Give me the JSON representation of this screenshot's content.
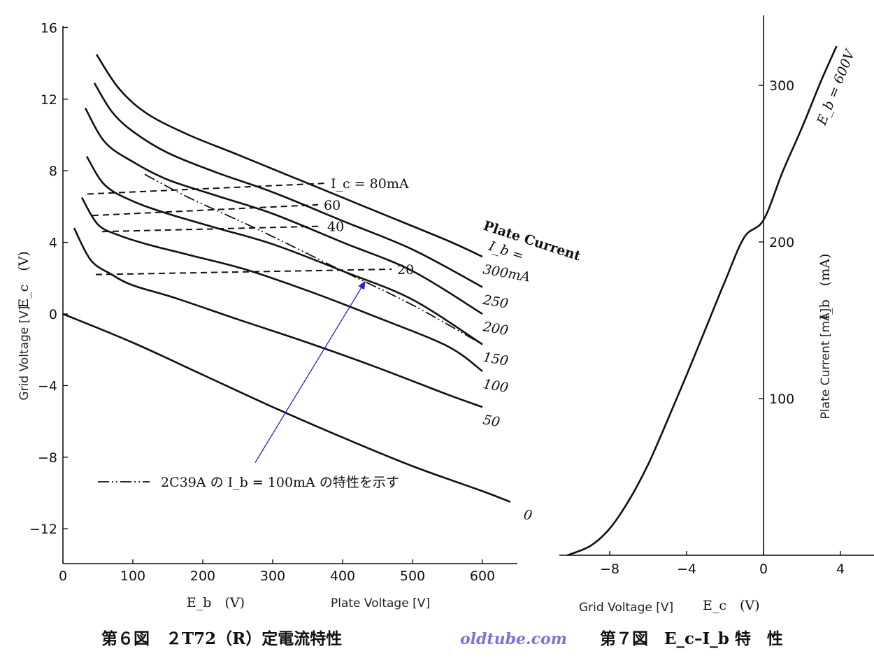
{
  "chart_data": [
    {
      "type": "line",
      "title": "第６図　２T72（R）定電流特性",
      "xlabel": "E_b　(V)",
      "xlabel_en": "Plate Voltage [V]",
      "ylabel": "E_c　(V)",
      "ylabel_en": "Grid Voltage [V]",
      "xlim": [
        0,
        650
      ],
      "ylim": [
        -14,
        16.5
      ],
      "x_ticks": [
        "0",
        "100",
        "200",
        "300",
        "400",
        "500",
        "600"
      ],
      "y_ticks": [
        "16",
        "12",
        "8",
        "4",
        "0",
        "−4",
        "−8",
        "−12"
      ],
      "family_label": "Plate Current",
      "family_symbol": "I_b =",
      "series": [
        {
          "name": "300mA",
          "label": "300mA",
          "color": "#111111",
          "x": [
            48,
            80,
            120,
            180,
            250,
            350,
            450,
            550,
            600
          ],
          "y": [
            14.5,
            12.6,
            11.2,
            10.0,
            8.9,
            7.3,
            5.7,
            4.1,
            3.2
          ]
        },
        {
          "name": "250",
          "label": "250",
          "color": "#111111",
          "x": [
            45,
            70,
            100,
            150,
            220,
            300,
            400,
            500,
            600
          ],
          "y": [
            12.9,
            11.3,
            10.2,
            9.0,
            7.9,
            6.8,
            5.2,
            3.6,
            1.5
          ]
        },
        {
          "name": "200",
          "label": "200",
          "color": "#111111",
          "x": [
            32,
            60,
            100,
            150,
            220,
            300,
            400,
            500,
            600
          ],
          "y": [
            11.5,
            9.6,
            8.5,
            7.5,
            6.6,
            5.6,
            4.0,
            2.4,
            0.0
          ]
        },
        {
          "name": "150",
          "label": "150",
          "color": "#111111",
          "x": [
            34,
            60,
            100,
            150,
            220,
            300,
            400,
            500,
            600
          ],
          "y": [
            8.8,
            7.2,
            6.3,
            5.6,
            4.8,
            3.9,
            2.4,
            0.8,
            -1.7
          ]
        },
        {
          "name": "100",
          "label": "100",
          "color": "#111111",
          "x": [
            27,
            50,
            80,
            120,
            180,
            260,
            350,
            450,
            550,
            600
          ],
          "y": [
            6.5,
            5.0,
            4.4,
            3.9,
            3.3,
            2.5,
            1.3,
            -0.2,
            -1.8,
            -3.2
          ]
        },
        {
          "name": "50",
          "label": "50",
          "color": "#111111",
          "x": [
            16,
            40,
            70,
            100,
            160,
            250,
            350,
            450,
            550,
            600
          ],
          "y": [
            4.8,
            3.0,
            2.2,
            1.6,
            0.9,
            -0.3,
            -1.6,
            -3.0,
            -4.5,
            -5.2
          ]
        },
        {
          "name": "0",
          "label": "0",
          "color": "#111111",
          "x": [
            0,
            100,
            200,
            300,
            400,
            500,
            600,
            640
          ],
          "y": [
            0.0,
            -1.6,
            -3.4,
            -5.2,
            -6.9,
            -8.5,
            -9.9,
            -10.5
          ]
        }
      ],
      "constant_grid_current": [
        {
          "label": "I_c = 80mA",
          "color": "#111111",
          "x": [
            35,
            375
          ],
          "y": [
            6.7,
            7.3
          ]
        },
        {
          "label": "60",
          "color": "#111111",
          "x": [
            42,
            365
          ],
          "y": [
            5.5,
            6.1
          ]
        },
        {
          "label": "40",
          "color": "#111111",
          "x": [
            56,
            370
          ],
          "y": [
            4.6,
            4.9
          ]
        },
        {
          "label": "20",
          "color": "#111111",
          "x": [
            47,
            470
          ],
          "y": [
            2.2,
            2.5
          ]
        }
      ],
      "reference_curve": {
        "label": "2C39A の I_b = 100mA の特性を示す",
        "color": "#111111",
        "x": [
          117,
          180,
          280,
          400,
          500,
          600
        ],
        "y": [
          7.8,
          6.5,
          4.7,
          2.4,
          0.5,
          -1.7
        ]
      },
      "annotation_arrow": {
        "color": "#2a20c8",
        "from": [
          275,
          -8.3
        ],
        "to": [
          432,
          1.8
        ]
      }
    },
    {
      "type": "line",
      "title": "第７図　E_c–I_b 特　性",
      "xlabel": "E_c　(V)",
      "xlabel_en": "Grid Voltage [V]",
      "ylabel": "I_b　(mA)",
      "ylabel_en": "Plate Current [mA]",
      "xlim": [
        -10.2,
        5.3
      ],
      "ylim": [
        0,
        345
      ],
      "x_ticks": [
        "−8",
        "−4",
        "0",
        "4"
      ],
      "y_ticks": [
        "300",
        "200",
        "100"
      ],
      "series": [
        {
          "name": "E_b = 600V",
          "label": "E_b = 600V",
          "color": "#111111",
          "x": [
            -10.2,
            -9,
            -8,
            -7,
            -6,
            -5,
            -4,
            -3,
            -2,
            -1,
            0,
            1,
            2,
            3,
            3.8
          ],
          "y": [
            0,
            6,
            17,
            35,
            58,
            86,
            115,
            145,
            175,
            203,
            214,
            245,
            273,
            303,
            325
          ]
        }
      ]
    }
  ],
  "watermark": "oldtube.com",
  "colors": {
    "ink": "#111111",
    "arrow": "#2a20c8",
    "watermark": "#7b74d9"
  }
}
